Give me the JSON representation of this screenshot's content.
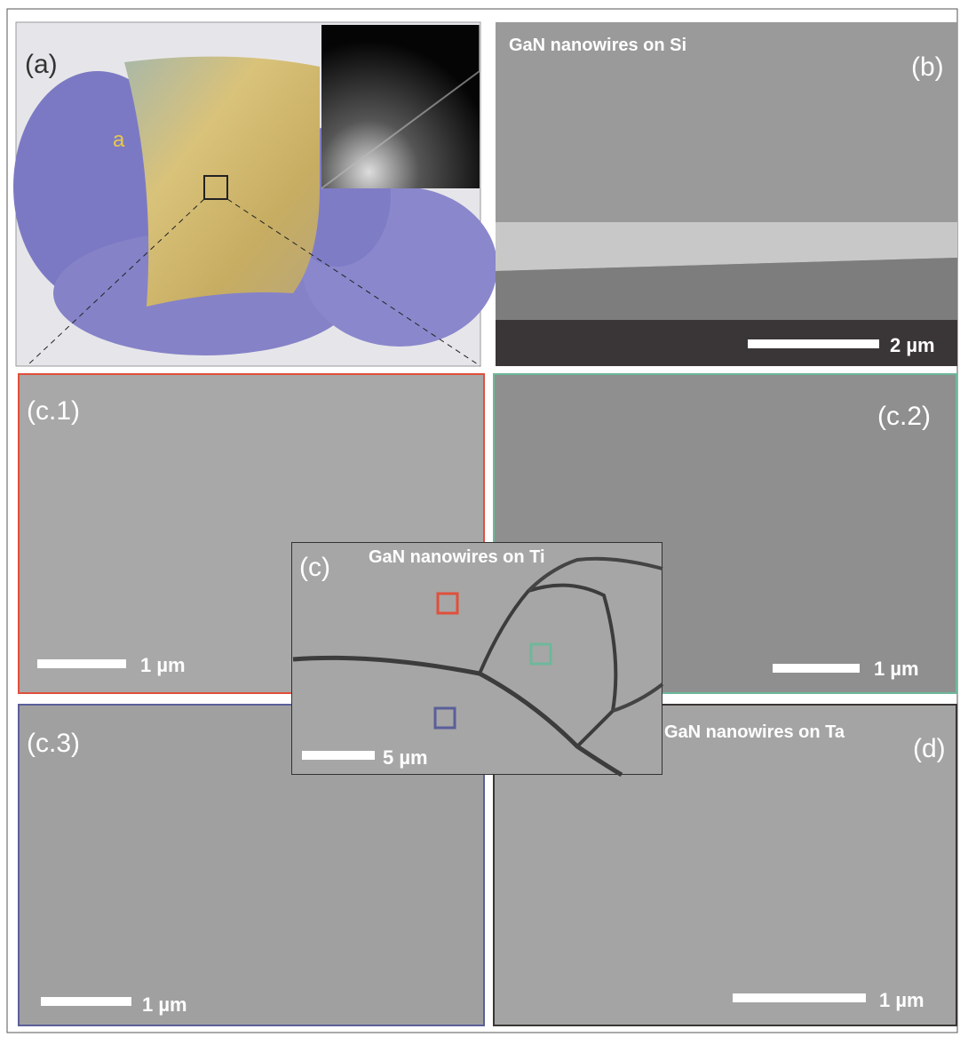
{
  "panels": {
    "a": {
      "label": "(a)",
      "annotation": "a"
    },
    "b": {
      "label": "(b)",
      "title": "GaN nanowires on Si",
      "scale_bar": "2 µm"
    },
    "c1": {
      "label": "(c.1)",
      "scale_bar": "1 µm"
    },
    "c2": {
      "label": "(c.2)",
      "scale_bar": "1 µm"
    },
    "c": {
      "label": "(c)",
      "title": "GaN nanowires on Ti",
      "scale_bar": "5 µm"
    },
    "c3": {
      "label": "(c.3)",
      "scale_bar": "1 µm"
    },
    "d": {
      "label": "(d)",
      "title": "GaN nanowires on Ta",
      "scale_bar": "1 µm"
    }
  }
}
